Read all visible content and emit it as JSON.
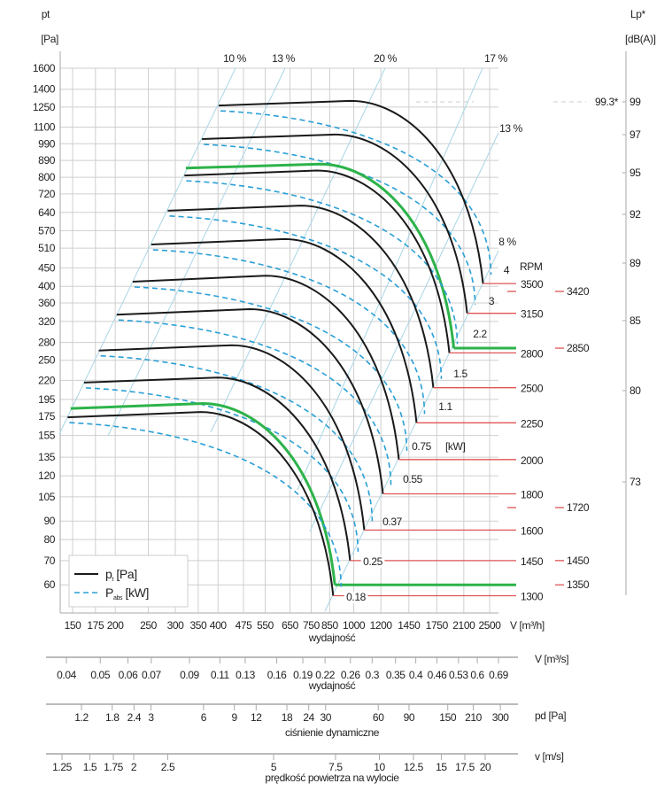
{
  "chart_data": {
    "type": "line",
    "y_axis": {
      "label": "pt",
      "unit": "[Pa]",
      "scale": "log",
      "range": [
        60,
        1600
      ],
      "ticks": [
        1600,
        1400,
        1250,
        1100,
        990,
        890,
        800,
        720,
        640,
        570,
        510,
        450,
        400,
        360,
        320,
        280,
        250,
        220,
        195,
        175,
        155,
        135,
        120,
        105,
        90,
        80,
        70,
        60
      ]
    },
    "x_axis": {
      "label": "wydajność",
      "unit": "V [m³/h]",
      "scale": "log",
      "range": [
        150,
        2500
      ],
      "ticks": [
        150,
        175,
        200,
        250,
        300,
        350,
        400,
        475,
        550,
        650,
        750,
        850,
        1000,
        1200,
        1450,
        1750,
        2100,
        2500
      ]
    },
    "secondary_axes": [
      {
        "unit": "V  [m³/s]",
        "label": "wydajność",
        "ticks": [
          "0.04",
          "0.05",
          "0.06",
          "0.07",
          "0.09",
          "0.11",
          "0.13",
          "0.16",
          "0.19",
          "0.22",
          "0.26",
          "0.3",
          "0.35",
          "0.4",
          "0.46",
          "0.53",
          "0.6",
          "0.69"
        ]
      },
      {
        "unit": "pd  [Pa]",
        "label": "ciśnienie dynamiczne",
        "ticks": [
          "1.2",
          "1.8",
          "2.4",
          "3",
          "6",
          "9",
          "12",
          "18",
          "24",
          "30",
          "60",
          "90",
          "150",
          "210",
          "300"
        ]
      },
      {
        "unit": "v  [m/s]",
        "label": "prędkość powietrza na wylocie",
        "ticks": [
          "1.25",
          "1.5",
          "1.75",
          "2",
          "2.5",
          "5",
          "7.5",
          "10",
          "12.5",
          "15",
          "17.5",
          "20"
        ]
      }
    ],
    "rpm_label": "RPM",
    "curves": [
      {
        "rpm": "3500",
        "v_start": 402,
        "p_start": 1262,
        "p_flat": 1300,
        "v_end": 2391,
        "p_end": 407,
        "highlight": false
      },
      {
        "rpm": "3150",
        "v_start": 359,
        "p_start": 1020,
        "p_flat": 1050,
        "v_end": 2148,
        "p_end": 337,
        "highlight": false
      },
      {
        "rpm": "2850",
        "v_start": 322,
        "p_start": 848,
        "p_flat": 870,
        "v_end": 1963,
        "p_end": 270,
        "highlight": true
      },
      {
        "rpm": "2800",
        "v_start": 319,
        "p_start": 809,
        "p_flat": 835,
        "v_end": 1905,
        "p_end": 262,
        "highlight": false
      },
      {
        "rpm": "2500",
        "v_start": 285,
        "p_start": 647,
        "p_flat": 668,
        "v_end": 1710,
        "p_end": 210,
        "highlight": false
      },
      {
        "rpm": "2250",
        "v_start": 255,
        "p_start": 522,
        "p_flat": 540,
        "v_end": 1527,
        "p_end": 168,
        "highlight": false
      },
      {
        "rpm": "2000",
        "v_start": 225,
        "p_start": 412,
        "p_flat": 428,
        "v_end": 1355,
        "p_end": 133,
        "highlight": false
      },
      {
        "rpm": "1800",
        "v_start": 202,
        "p_start": 334,
        "p_flat": 346,
        "v_end": 1217,
        "p_end": 107,
        "highlight": false
      },
      {
        "rpm": "1600",
        "v_start": 179,
        "p_start": 266,
        "p_flat": 275,
        "v_end": 1073,
        "p_end": 85,
        "highlight": false
      },
      {
        "rpm": "1450",
        "v_start": 162,
        "p_start": 217,
        "p_flat": 224,
        "v_end": 975,
        "p_end": 70,
        "highlight": false
      },
      {
        "rpm": "1350",
        "v_start": 148,
        "p_start": 184,
        "p_flat": 190,
        "v_end": 880,
        "p_end": 60,
        "highlight": true
      },
      {
        "rpm": "1300",
        "v_start": 145,
        "p_start": 174,
        "p_flat": 180,
        "v_end": 870,
        "p_end": 56,
        "highlight": false
      }
    ],
    "extra_rpm": [
      "3420",
      "1720"
    ],
    "power_labels_kw": [
      "4",
      "3",
      "2.2",
      "1.5",
      "1.1",
      "0.75",
      "0.55",
      "0.37",
      "0.25",
      "0.18"
    ],
    "power_unit": "[kW]",
    "efficiency_labels": [
      "10 %",
      "13 %",
      "20 %",
      "17 %",
      "13 %",
      "8 %"
    ],
    "sound_axis": {
      "label": "Lp*",
      "unit": "[dB(A)]",
      "ticks": [
        "99",
        "97",
        "95",
        "92",
        "89",
        "85",
        "80",
        "73"
      ],
      "peak": "99.3*"
    },
    "legend": {
      "placement": "bottom-left",
      "items": [
        {
          "symbol": "p",
          "sub": "t",
          "unit": " [Pa]"
        },
        {
          "symbol": "P",
          "sub": "abs",
          "unit": " [kW]"
        }
      ]
    },
    "colors": {
      "pressure": "#1a1a1a",
      "power": "#2a9fd6",
      "highlight": "#2db34a",
      "rpm_line": "#e05555"
    }
  }
}
